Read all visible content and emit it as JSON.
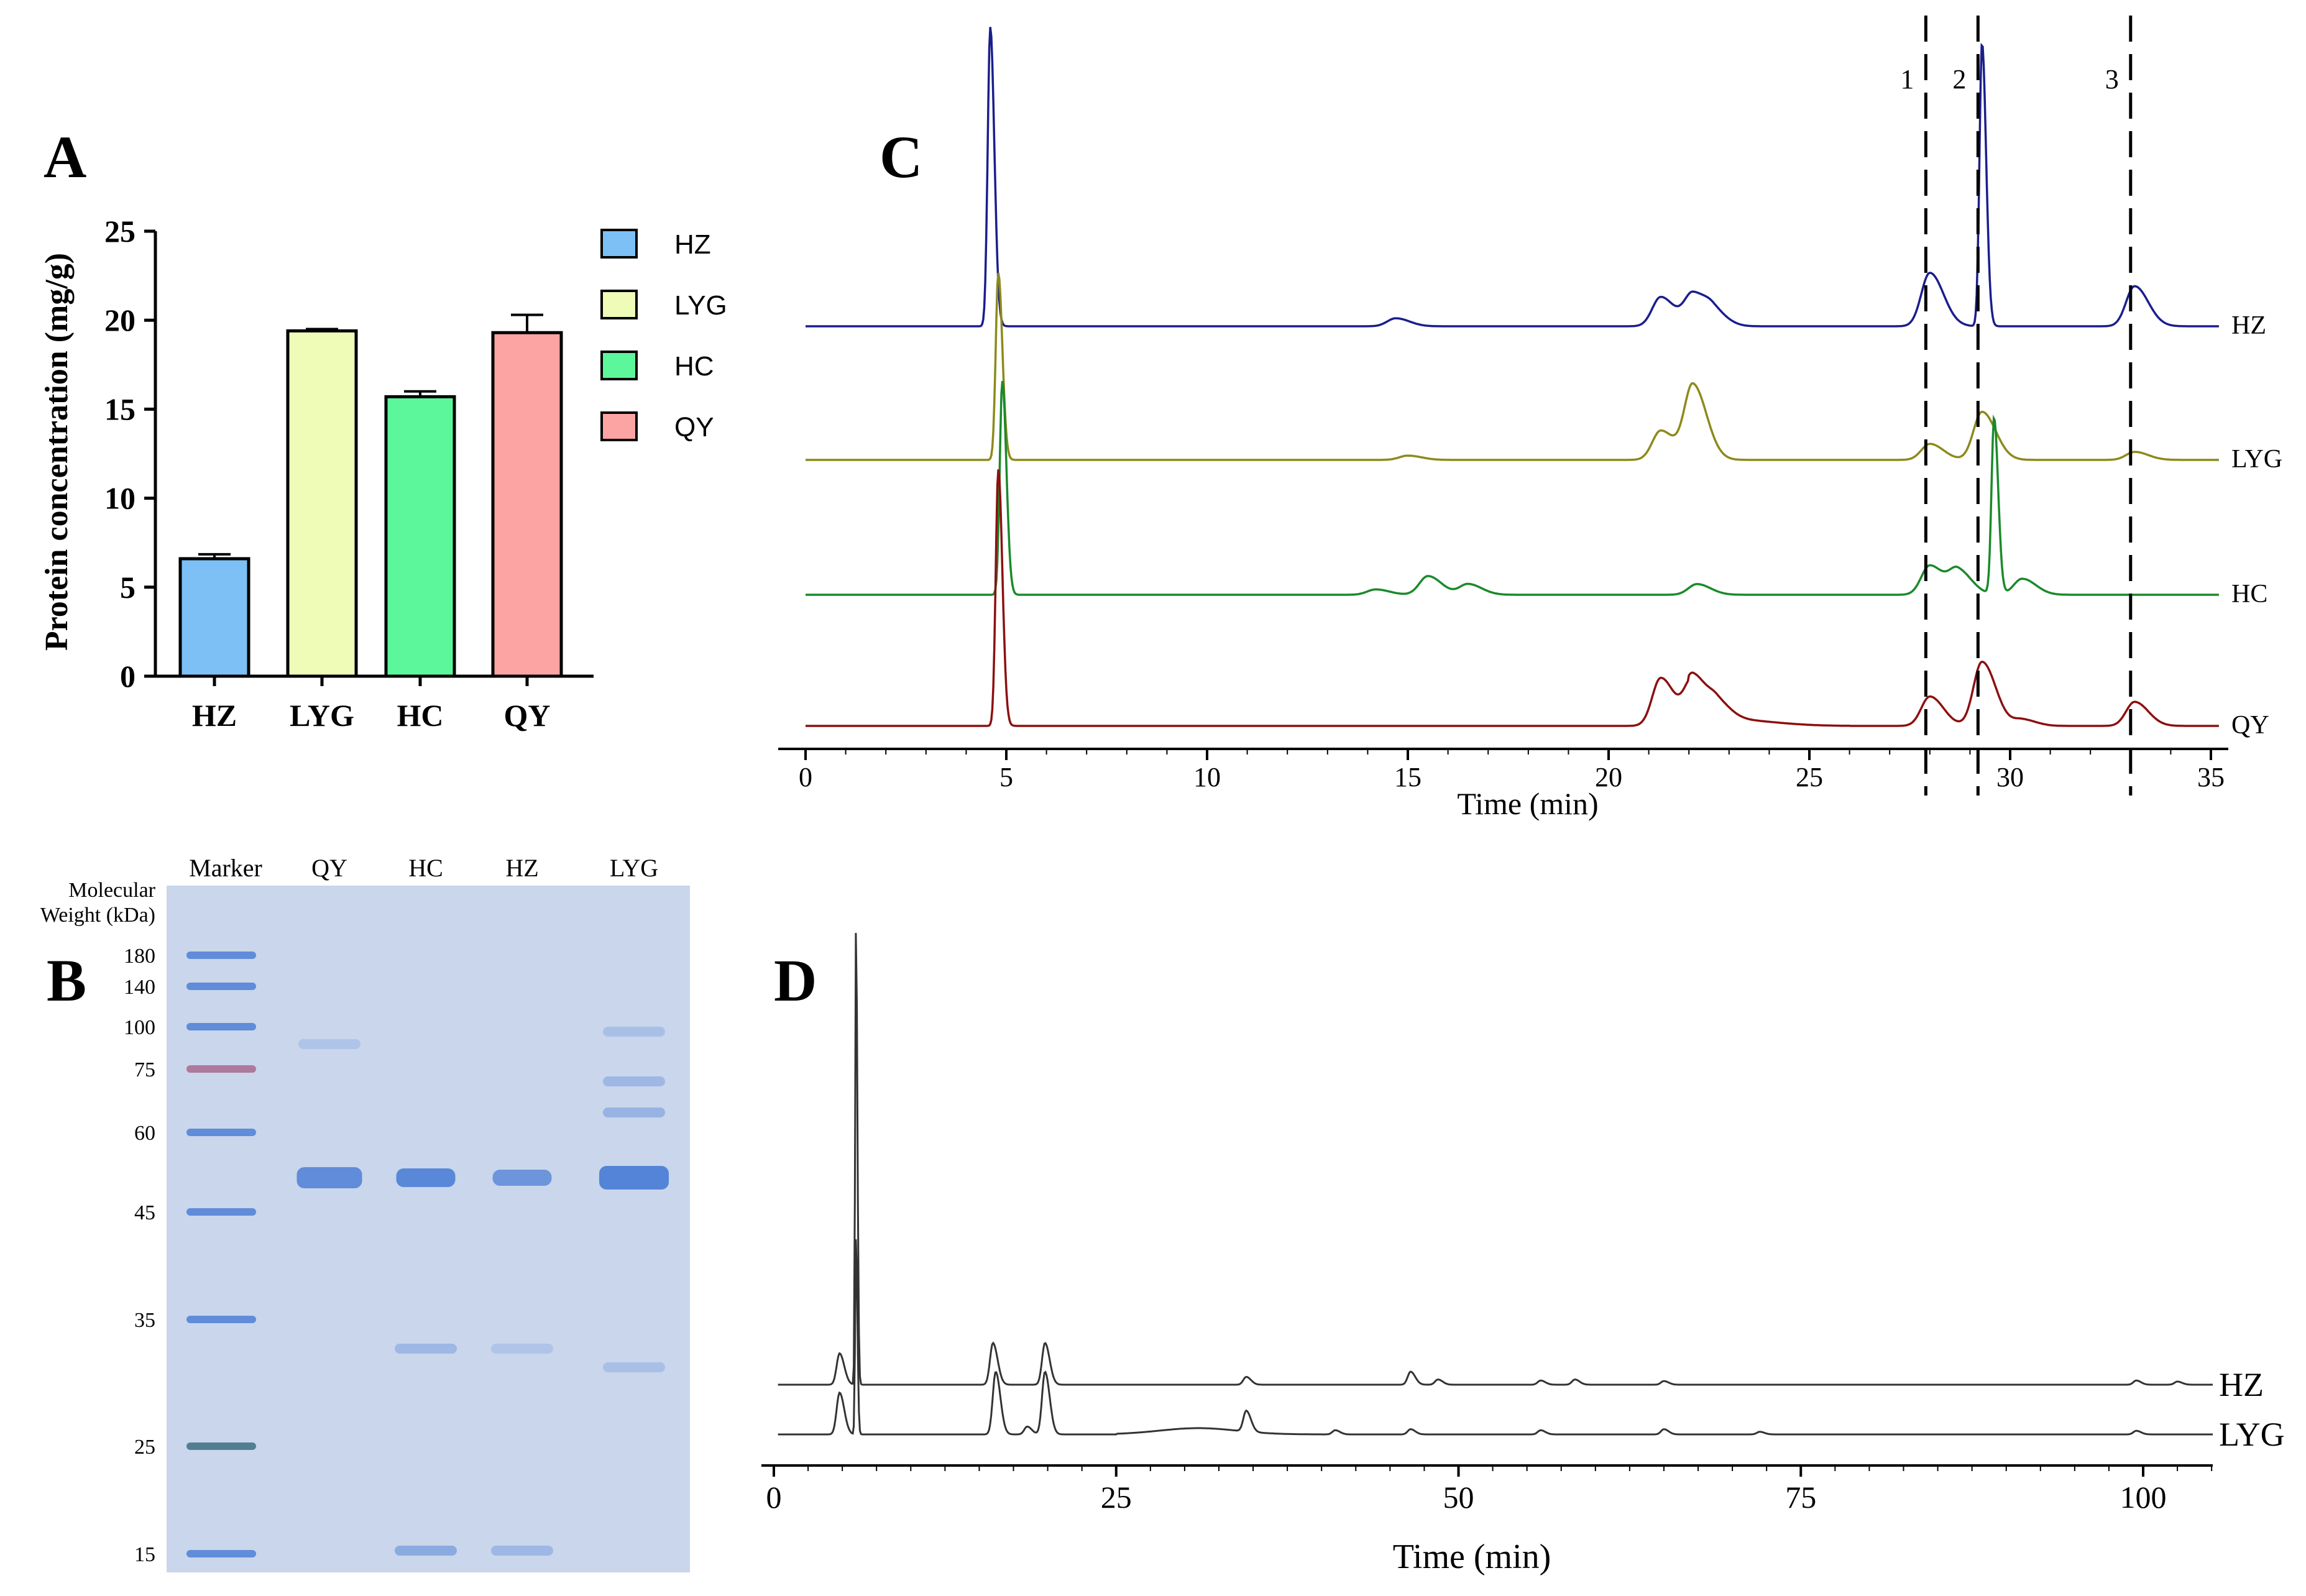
{
  "panels": {
    "A": "A",
    "B": "B",
    "C": "C",
    "D": "D"
  },
  "colors": {
    "HZ_bar": "#7cc0f5",
    "LYG_bar": "#eefcb8",
    "HC_bar": "#5cf79a",
    "QY_bar": "#fca4a4",
    "HZ_line": "#1a1e8c",
    "LYG_line": "#8c8a1a",
    "HC_line": "#1a8a2a",
    "QY_line": "#8c1010",
    "D_line": "#333333",
    "gel_bg": "#c9d6eb",
    "gel_band": "#4d7fd6"
  },
  "chart_data": [
    {
      "id": "A",
      "type": "bar",
      "title": "",
      "ylabel": "Protein concentration (mg/g)",
      "xlabel": "",
      "categories": [
        "HZ",
        "LYG",
        "HC",
        "QY"
      ],
      "values": [
        6.6,
        19.4,
        15.7,
        19.3
      ],
      "errors": [
        0.25,
        0.1,
        0.3,
        1.0
      ],
      "ylim": [
        0,
        25
      ],
      "yticks": [
        0,
        5,
        10,
        15,
        20,
        25
      ],
      "legend": [
        "HZ",
        "LYG",
        "HC",
        "QY"
      ]
    },
    {
      "id": "C",
      "type": "line",
      "xlabel": "Time (min)",
      "xlim": [
        0,
        35
      ],
      "xticks": [
        0,
        5,
        10,
        15,
        20,
        25,
        30,
        35
      ],
      "series": [
        "HZ",
        "LYG",
        "HC",
        "QY"
      ],
      "peaks": {
        "HZ": [
          [
            4.6,
            5.6
          ],
          [
            14.7,
            0.15
          ],
          [
            21.3,
            0.55
          ],
          [
            22.1,
            0.6
          ],
          [
            22.6,
            0.25
          ],
          [
            28.0,
            1.0
          ],
          [
            29.3,
            5.3
          ],
          [
            33.1,
            0.75
          ]
        ],
        "LYG": [
          [
            4.8,
            3.5
          ],
          [
            15.0,
            0.08
          ],
          [
            21.3,
            0.55
          ],
          [
            22.1,
            1.4
          ],
          [
            28.0,
            0.3
          ],
          [
            29.3,
            0.9
          ],
          [
            33.1,
            0.15
          ]
        ],
        "HC": [
          [
            4.9,
            4.0
          ],
          [
            14.2,
            0.1
          ],
          [
            15.5,
            0.35
          ],
          [
            16.5,
            0.2
          ],
          [
            22.2,
            0.2
          ],
          [
            28.0,
            0.55
          ],
          [
            28.7,
            0.45
          ],
          [
            29.6,
            3.3
          ],
          [
            30.3,
            0.3
          ]
        ],
        "QY": [
          [
            4.8,
            4.8
          ],
          [
            21.3,
            0.9
          ],
          [
            22.1,
            0.85
          ],
          [
            22.7,
            0.3
          ],
          [
            28.0,
            0.55
          ],
          [
            29.3,
            1.2
          ],
          [
            30.3,
            0.12
          ],
          [
            33.1,
            0.45
          ]
        ]
      },
      "markers": [
        {
          "label": "1",
          "x": 27.9
        },
        {
          "label": "2",
          "x": 29.2
        },
        {
          "label": "3",
          "x": 33.0
        }
      ]
    },
    {
      "id": "D",
      "type": "line",
      "xlabel": "Time (min)",
      "xlim": [
        0,
        105
      ],
      "xticks": [
        0,
        25,
        50,
        75,
        100
      ],
      "series": [
        "HZ",
        "LYG"
      ],
      "peaks": {
        "HZ": [
          [
            4.8,
            0.6
          ],
          [
            6.0,
            8.8
          ],
          [
            16.0,
            0.8
          ],
          [
            19.8,
            0.8
          ],
          [
            34.5,
            0.15
          ],
          [
            46.5,
            0.25
          ],
          [
            48.5,
            0.1
          ],
          [
            56.0,
            0.08
          ],
          [
            58.5,
            0.1
          ],
          [
            65.0,
            0.07
          ],
          [
            99.5,
            0.08
          ],
          [
            102.5,
            0.06
          ]
        ],
        "LYG": [
          [
            4.8,
            0.8
          ],
          [
            6.0,
            3.8
          ],
          [
            16.2,
            1.2
          ],
          [
            18.5,
            0.15
          ],
          [
            19.8,
            1.2
          ],
          [
            34.5,
            0.4
          ],
          [
            41.0,
            0.08
          ],
          [
            46.5,
            0.1
          ],
          [
            56.0,
            0.08
          ],
          [
            65.0,
            0.1
          ],
          [
            72.0,
            0.05
          ],
          [
            99.5,
            0.07
          ]
        ]
      }
    }
  ],
  "gel": {
    "lanes": [
      "Marker",
      "QY",
      "HC",
      "HZ",
      "LYG"
    ],
    "mw_title_line1": "Molecular",
    "mw_title_line2": "Weight (kDa)",
    "mw_values": [
      "180",
      "140",
      "100",
      "75",
      "60",
      "45",
      "35",
      "25",
      "15"
    ]
  }
}
